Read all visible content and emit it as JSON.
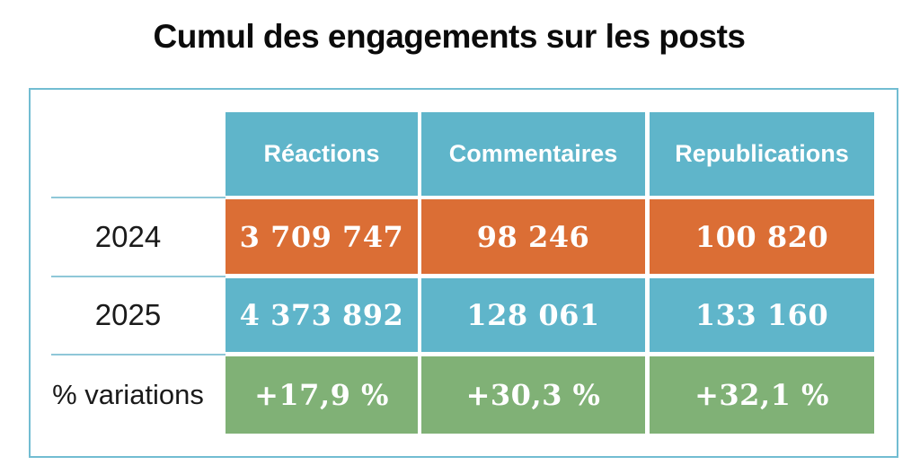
{
  "title": "Cumul des engagements sur les posts",
  "table": {
    "columns": [
      "Réactions",
      "Commentaires",
      "Republications"
    ],
    "rows": [
      {
        "label": "2024",
        "values": [
          "3 709 747",
          "98 246",
          "100 820"
        ]
      },
      {
        "label": "2025",
        "values": [
          "4 373 892",
          "128 061",
          "133 160"
        ]
      },
      {
        "label": "% variations",
        "values": [
          "+17,9 %",
          "+30,3 %",
          "+32,1 %"
        ]
      }
    ]
  },
  "chart_data": {
    "type": "table",
    "title": "Cumul des engagements sur les posts",
    "columns": [
      "Réactions",
      "Commentaires",
      "Republications"
    ],
    "row_labels": [
      "2024",
      "2025",
      "% variations"
    ],
    "values_2024": [
      3709747,
      98246,
      100820
    ],
    "values_2025": [
      4373892,
      128061,
      133160
    ],
    "percent_variation": [
      17.9,
      30.3,
      32.1
    ]
  },
  "colors": {
    "title_text": "#0b0b0b",
    "label_text": "#1a1a1a",
    "cell_text": "#ffffff",
    "header_blue": "#5fb5ca",
    "orange_2024": "#db6e35",
    "blue_2025": "#5fb5ca",
    "green_variations": "#80b176",
    "panel_border": "#72bdd2",
    "row_separator": "#8fc7d8"
  }
}
